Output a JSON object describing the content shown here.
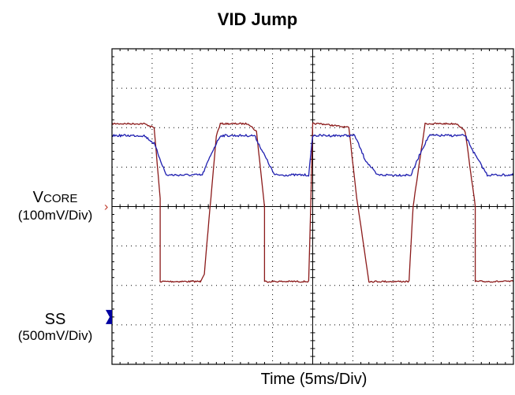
{
  "title": "VID Jump",
  "xlabel": "Time  (5ms/Div)",
  "channels": [
    {
      "name": "V",
      "name_sub": "CORE",
      "scale": "(100mV/Div)",
      "marker": "›",
      "color": "#c03a2b"
    },
    {
      "name": "SS",
      "scale": "(500mV/Div)",
      "marker_color": "#0000a0"
    }
  ],
  "chart_data": {
    "type": "line",
    "title": "VID Jump",
    "xlabel": "Time  (5ms/Div)",
    "ylabel": "",
    "x_divisions": 10,
    "y_divisions": 8,
    "xlim": [
      0,
      10
    ],
    "ylim": [
      0,
      8
    ],
    "grid": true,
    "series": [
      {
        "name": "SS",
        "color": "#8b1a1a",
        "x": [
          0,
          0.8,
          1.05,
          1.2,
          1.2,
          2.2,
          2.2,
          2.3,
          2.6,
          2.7,
          3.4,
          3.6,
          3.8,
          3.8,
          4.9,
          4.95,
          5.0,
          5.05,
          5.2,
          5.9,
          6.1,
          6.4,
          6.4,
          7.4,
          7.5,
          7.8,
          7.9,
          8.6,
          8.8,
          9.05,
          9.05,
          10
        ],
        "y": [
          6.1,
          6.1,
          6.0,
          4.2,
          2.1,
          2.1,
          2.1,
          2.3,
          5.8,
          6.1,
          6.1,
          5.9,
          4.0,
          2.1,
          2.1,
          4.0,
          6.1,
          6.1,
          6.1,
          6.0,
          4.2,
          2.1,
          2.1,
          2.1,
          4.0,
          6.1,
          6.1,
          6.1,
          5.9,
          4.0,
          2.1,
          2.1
        ]
      },
      {
        "name": "VCORE",
        "color": "#1f1fb0",
        "x": [
          0,
          0.8,
          1.05,
          1.35,
          2.25,
          2.5,
          2.7,
          3.55,
          3.8,
          4.05,
          4.9,
          5.0,
          5.1,
          6.05,
          6.3,
          6.6,
          7.45,
          7.7,
          7.9,
          8.8,
          9.05,
          9.35,
          10
        ],
        "y": [
          5.8,
          5.8,
          5.6,
          4.8,
          4.8,
          5.4,
          5.8,
          5.8,
          5.3,
          4.8,
          4.8,
          5.8,
          5.8,
          5.8,
          5.2,
          4.8,
          4.8,
          5.4,
          5.8,
          5.8,
          5.3,
          4.8,
          4.8
        ]
      }
    ]
  }
}
